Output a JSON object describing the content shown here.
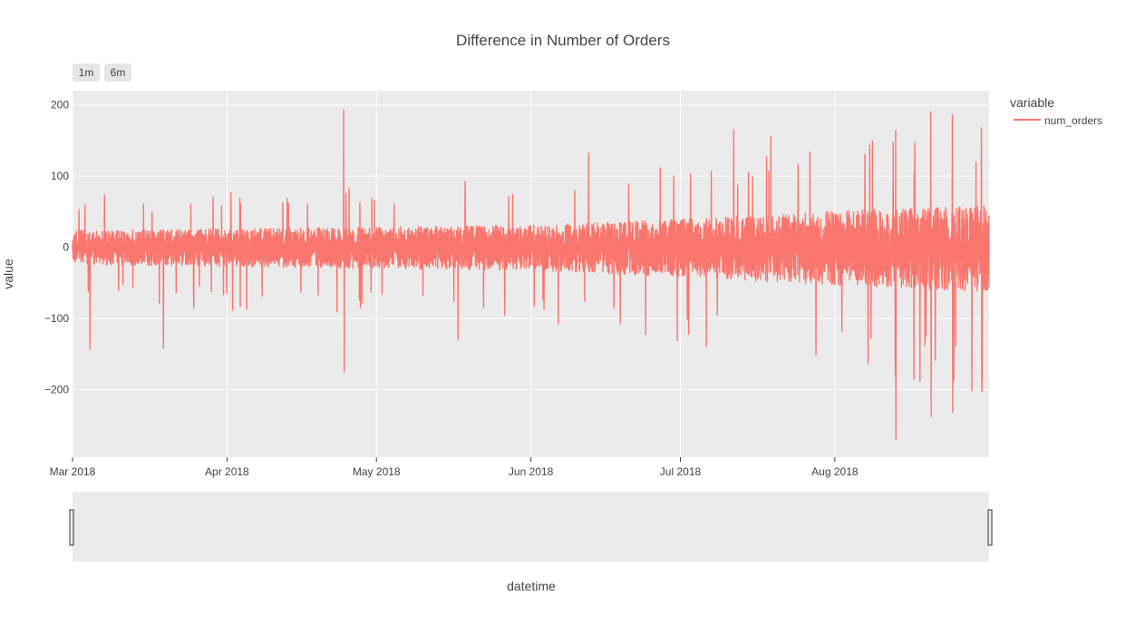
{
  "chart_data": {
    "type": "line",
    "title": "Difference in Number of Orders",
    "xlabel": "datetime",
    "ylabel": "value",
    "xlim": [
      "2018-03-01",
      "2018-08-31 23:00"
    ],
    "ylim": [
      -295,
      220
    ],
    "x_ticks": [
      {
        "date": "2018-03-01",
        "label": "Mar 2018"
      },
      {
        "date": "2018-04-01",
        "label": "Apr 2018"
      },
      {
        "date": "2018-05-01",
        "label": "May 2018"
      },
      {
        "date": "2018-06-01",
        "label": "Jun 2018"
      },
      {
        "date": "2018-07-01",
        "label": "Jul 2018"
      },
      {
        "date": "2018-08-01",
        "label": "Aug 2018"
      }
    ],
    "y_ticks": [
      {
        "value": 200,
        "label": "200"
      },
      {
        "value": 100,
        "label": "100"
      },
      {
        "value": 0,
        "label": "0"
      },
      {
        "value": -100,
        "label": "−100"
      },
      {
        "value": -200,
        "label": "−200"
      }
    ],
    "grid": true,
    "legend": {
      "title": "variable",
      "position": "right"
    },
    "series": [
      {
        "name": "num_orders",
        "color": "#f8766d",
        "sampling": "hourly",
        "notable_points": [
          {
            "x": "2018-03-04 12:00",
            "y": -143
          },
          {
            "x": "2018-03-19 06:00",
            "y": -142
          },
          {
            "x": "2018-04-24 10:00",
            "y": 193
          },
          {
            "x": "2018-04-24 13:00",
            "y": -175
          },
          {
            "x": "2018-05-17 09:00",
            "y": -130
          },
          {
            "x": "2018-06-12 14:00",
            "y": 132
          },
          {
            "x": "2018-07-11 17:00",
            "y": 165
          },
          {
            "x": "2018-07-19 04:00",
            "y": 156
          },
          {
            "x": "2018-08-13 05:00",
            "y": 164
          },
          {
            "x": "2018-08-13 06:00",
            "y": -270
          },
          {
            "x": "2018-08-20 06:00",
            "y": 190
          },
          {
            "x": "2018-08-20 08:00",
            "y": -238
          },
          {
            "x": "2018-08-24 14:00",
            "y": 186
          },
          {
            "x": "2018-08-24 16:00",
            "y": -232
          },
          {
            "x": "2018-08-30 10:00",
            "y": 168
          },
          {
            "x": "2018-08-30 14:00",
            "y": -188
          }
        ],
        "envelope": [
          {
            "x": "2018-03-01",
            "typical_high": 45,
            "typical_low": -50
          },
          {
            "x": "2018-04-01",
            "typical_high": 50,
            "typical_low": -55
          },
          {
            "x": "2018-05-01",
            "typical_high": 55,
            "typical_low": -60
          },
          {
            "x": "2018-06-01",
            "typical_high": 60,
            "typical_low": -65
          },
          {
            "x": "2018-07-01",
            "typical_high": 75,
            "typical_low": -85
          },
          {
            "x": "2018-08-01",
            "typical_high": 95,
            "typical_low": -110
          },
          {
            "x": "2018-08-31 23:00",
            "typical_high": 110,
            "typical_low": -130
          }
        ]
      }
    ]
  },
  "range_selector": {
    "buttons": [
      {
        "label": "1m"
      },
      {
        "label": "6m"
      }
    ]
  }
}
